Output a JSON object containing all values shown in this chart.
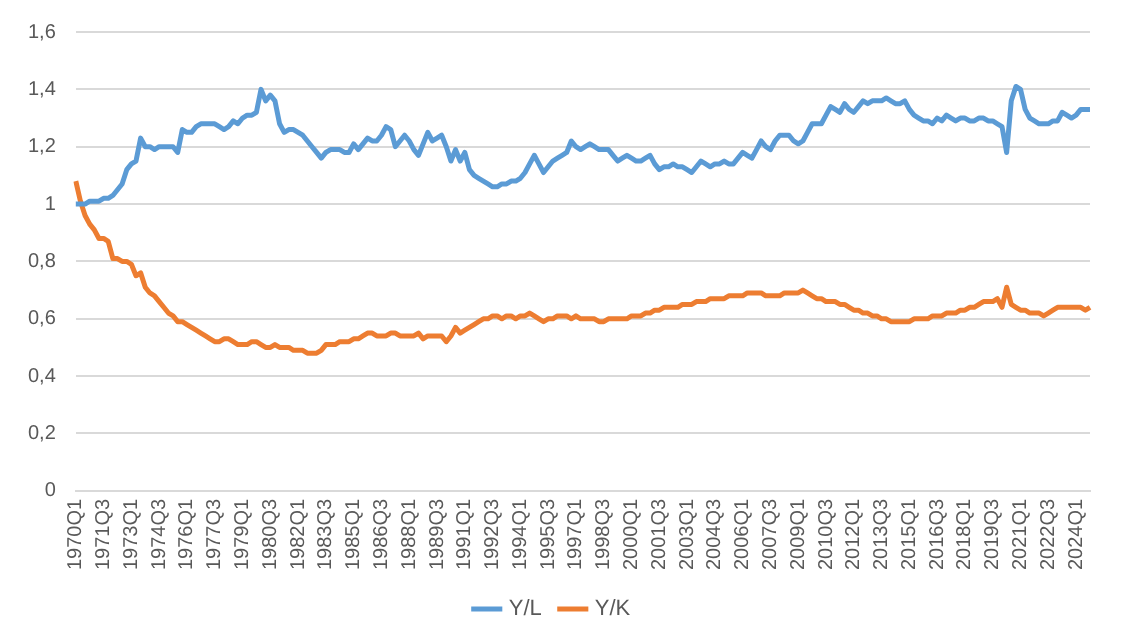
{
  "chart_data": {
    "type": "line",
    "categories": [
      "1970Q1",
      null,
      null,
      null,
      null,
      null,
      "1971Q3",
      null,
      null,
      null,
      null,
      null,
      "1973Q1",
      null,
      null,
      null,
      null,
      null,
      "1974Q3",
      null,
      null,
      null,
      null,
      null,
      "1976Q1",
      null,
      null,
      null,
      null,
      null,
      "1977Q3",
      null,
      null,
      null,
      null,
      null,
      "1979Q1",
      null,
      null,
      null,
      null,
      null,
      "1980Q3",
      null,
      null,
      null,
      null,
      null,
      "1982Q1",
      null,
      null,
      null,
      null,
      null,
      "1983Q3",
      null,
      null,
      null,
      null,
      null,
      "1985Q1",
      null,
      null,
      null,
      null,
      null,
      "1986Q3",
      null,
      null,
      null,
      null,
      null,
      "1988Q1",
      null,
      null,
      null,
      null,
      null,
      "1989Q3",
      null,
      null,
      null,
      null,
      null,
      "1991Q1",
      null,
      null,
      null,
      null,
      null,
      "1992Q3",
      null,
      null,
      null,
      null,
      null,
      "1994Q1",
      null,
      null,
      null,
      null,
      null,
      "1995Q3",
      null,
      null,
      null,
      null,
      null,
      "1997Q1",
      null,
      null,
      null,
      null,
      null,
      "1998Q3",
      null,
      null,
      null,
      null,
      null,
      "2000Q1",
      null,
      null,
      null,
      null,
      null,
      "2001Q3",
      null,
      null,
      null,
      null,
      null,
      "2003Q1",
      null,
      null,
      null,
      null,
      null,
      "2004Q3",
      null,
      null,
      null,
      null,
      null,
      "2006Q1",
      null,
      null,
      null,
      null,
      null,
      "2007Q3",
      null,
      null,
      null,
      null,
      null,
      "2009Q1",
      null,
      null,
      null,
      null,
      null,
      "2010Q3",
      null,
      null,
      null,
      null,
      null,
      "2012Q1",
      null,
      null,
      null,
      null,
      null,
      "2013Q3",
      null,
      null,
      null,
      null,
      null,
      "2015Q1",
      null,
      null,
      null,
      null,
      null,
      "2016Q3",
      null,
      null,
      null,
      null,
      null,
      "2018Q1",
      null,
      null,
      null,
      null,
      null,
      "2019Q3",
      null,
      null,
      null,
      null,
      null,
      "2021Q1",
      null,
      null,
      null,
      null,
      null,
      "2022Q3",
      null,
      null,
      null,
      null,
      null,
      "2024Q1",
      null,
      null,
      null
    ],
    "series": [
      {
        "name": "Y/L",
        "color": "#5b9bd5",
        "values": [
          1.0,
          1.0,
          1.0,
          1.01,
          1.01,
          1.01,
          1.02,
          1.02,
          1.03,
          1.05,
          1.07,
          1.12,
          1.14,
          1.15,
          1.23,
          1.2,
          1.2,
          1.19,
          1.2,
          1.2,
          1.2,
          1.2,
          1.18,
          1.26,
          1.25,
          1.25,
          1.27,
          1.28,
          1.28,
          1.28,
          1.28,
          1.27,
          1.26,
          1.27,
          1.29,
          1.28,
          1.3,
          1.31,
          1.31,
          1.32,
          1.4,
          1.36,
          1.38,
          1.36,
          1.28,
          1.25,
          1.26,
          1.26,
          1.25,
          1.24,
          1.22,
          1.2,
          1.18,
          1.16,
          1.18,
          1.19,
          1.19,
          1.19,
          1.18,
          1.18,
          1.21,
          1.19,
          1.21,
          1.23,
          1.22,
          1.22,
          1.24,
          1.27,
          1.26,
          1.2,
          1.22,
          1.24,
          1.22,
          1.19,
          1.17,
          1.21,
          1.25,
          1.22,
          1.23,
          1.24,
          1.2,
          1.15,
          1.19,
          1.15,
          1.18,
          1.12,
          1.1,
          1.09,
          1.08,
          1.07,
          1.06,
          1.06,
          1.07,
          1.07,
          1.08,
          1.08,
          1.09,
          1.11,
          1.14,
          1.17,
          1.14,
          1.11,
          1.13,
          1.15,
          1.16,
          1.17,
          1.18,
          1.22,
          1.2,
          1.19,
          1.2,
          1.21,
          1.2,
          1.19,
          1.19,
          1.19,
          1.17,
          1.15,
          1.16,
          1.17,
          1.16,
          1.15,
          1.15,
          1.16,
          1.17,
          1.14,
          1.12,
          1.13,
          1.13,
          1.14,
          1.13,
          1.13,
          1.12,
          1.11,
          1.13,
          1.15,
          1.14,
          1.13,
          1.14,
          1.14,
          1.15,
          1.14,
          1.14,
          1.16,
          1.18,
          1.17,
          1.16,
          1.19,
          1.22,
          1.2,
          1.19,
          1.22,
          1.24,
          1.24,
          1.24,
          1.22,
          1.21,
          1.22,
          1.25,
          1.28,
          1.28,
          1.28,
          1.31,
          1.34,
          1.33,
          1.32,
          1.35,
          1.33,
          1.32,
          1.34,
          1.36,
          1.35,
          1.36,
          1.36,
          1.36,
          1.37,
          1.36,
          1.35,
          1.35,
          1.36,
          1.33,
          1.31,
          1.3,
          1.29,
          1.29,
          1.28,
          1.3,
          1.29,
          1.31,
          1.3,
          1.29,
          1.3,
          1.3,
          1.29,
          1.29,
          1.3,
          1.3,
          1.29,
          1.29,
          1.28,
          1.27,
          1.18,
          1.36,
          1.41,
          1.4,
          1.33,
          1.3,
          1.29,
          1.28,
          1.28,
          1.28,
          1.29,
          1.29,
          1.32,
          1.31,
          1.3,
          1.31,
          1.33,
          1.33,
          1.33
        ]
      },
      {
        "name": "Y/K",
        "color": "#ed7d31",
        "values": [
          1.08,
          1.01,
          0.96,
          0.93,
          0.91,
          0.88,
          0.88,
          0.87,
          0.81,
          0.81,
          0.8,
          0.8,
          0.79,
          0.75,
          0.76,
          0.71,
          0.69,
          0.68,
          0.66,
          0.64,
          0.62,
          0.61,
          0.59,
          0.59,
          0.58,
          0.57,
          0.56,
          0.55,
          0.54,
          0.53,
          0.52,
          0.52,
          0.53,
          0.53,
          0.52,
          0.51,
          0.51,
          0.51,
          0.52,
          0.52,
          0.51,
          0.5,
          0.5,
          0.51,
          0.5,
          0.5,
          0.5,
          0.49,
          0.49,
          0.49,
          0.48,
          0.48,
          0.48,
          0.49,
          0.51,
          0.51,
          0.51,
          0.52,
          0.52,
          0.52,
          0.53,
          0.53,
          0.54,
          0.55,
          0.55,
          0.54,
          0.54,
          0.54,
          0.55,
          0.55,
          0.54,
          0.54,
          0.54,
          0.54,
          0.55,
          0.53,
          0.54,
          0.54,
          0.54,
          0.54,
          0.52,
          0.54,
          0.57,
          0.55,
          0.56,
          0.57,
          0.58,
          0.59,
          0.6,
          0.6,
          0.61,
          0.61,
          0.6,
          0.61,
          0.61,
          0.6,
          0.61,
          0.61,
          0.62,
          0.61,
          0.6,
          0.59,
          0.6,
          0.6,
          0.61,
          0.61,
          0.61,
          0.6,
          0.61,
          0.6,
          0.6,
          0.6,
          0.6,
          0.59,
          0.59,
          0.6,
          0.6,
          0.6,
          0.6,
          0.6,
          0.61,
          0.61,
          0.61,
          0.62,
          0.62,
          0.63,
          0.63,
          0.64,
          0.64,
          0.64,
          0.64,
          0.65,
          0.65,
          0.65,
          0.66,
          0.66,
          0.66,
          0.67,
          0.67,
          0.67,
          0.67,
          0.68,
          0.68,
          0.68,
          0.68,
          0.69,
          0.69,
          0.69,
          0.69,
          0.68,
          0.68,
          0.68,
          0.68,
          0.69,
          0.69,
          0.69,
          0.69,
          0.7,
          0.69,
          0.68,
          0.67,
          0.67,
          0.66,
          0.66,
          0.66,
          0.65,
          0.65,
          0.64,
          0.63,
          0.63,
          0.62,
          0.62,
          0.61,
          0.61,
          0.6,
          0.6,
          0.59,
          0.59,
          0.59,
          0.59,
          0.59,
          0.6,
          0.6,
          0.6,
          0.6,
          0.61,
          0.61,
          0.61,
          0.62,
          0.62,
          0.62,
          0.63,
          0.63,
          0.64,
          0.64,
          0.65,
          0.66,
          0.66,
          0.66,
          0.67,
          0.64,
          0.71,
          0.65,
          0.64,
          0.63,
          0.63,
          0.62,
          0.62,
          0.62,
          0.61,
          0.62,
          0.63,
          0.64,
          0.64,
          0.64,
          0.64,
          0.64,
          0.64,
          0.63,
          0.64
        ]
      }
    ],
    "ylim": [
      0,
      1.6
    ],
    "yticks": [
      0,
      {
        "value": 0.2,
        "label": "0,2"
      },
      {
        "value": 0.4,
        "label": "0,4"
      },
      {
        "value": 0.6,
        "label": "0,6"
      },
      {
        "value": 0.8,
        "label": "0,8"
      },
      1,
      {
        "value": 1.2,
        "label": "1,2"
      },
      {
        "value": 1.4,
        "label": "1,4"
      },
      {
        "value": 1.6,
        "label": "1,6"
      }
    ],
    "grid": "y",
    "legend": "bottom",
    "marker": "none",
    "line_style": "solid"
  }
}
